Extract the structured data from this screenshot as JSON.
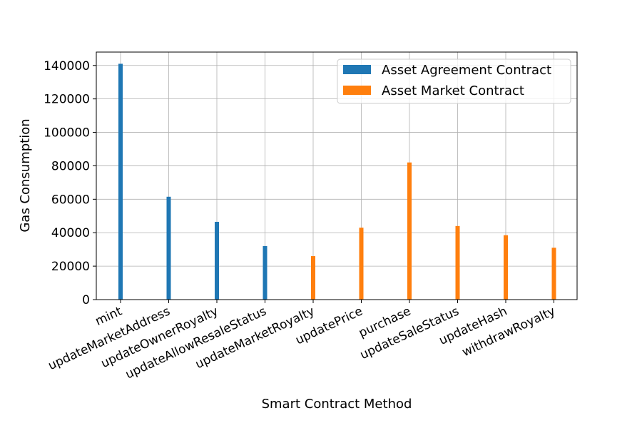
{
  "chart_data": {
    "type": "bar",
    "title": "",
    "xlabel": "Smart Contract Method",
    "ylabel": "Gas Consumption",
    "ylim": [
      0,
      148000
    ],
    "yticks": [
      0,
      20000,
      40000,
      60000,
      80000,
      100000,
      120000,
      140000
    ],
    "grid": true,
    "legend_position": "top-right",
    "categories": [
      "mint",
      "updateMarketAddress",
      "updateOwnerRoyalty",
      "updateAllowResaleStatus",
      "updateMarketRoyalty",
      "updatePrice",
      "purchase",
      "updateSaleStatus",
      "updateHash",
      "withdrawRoyalty"
    ],
    "series": [
      {
        "name": "Asset Agreement Contract",
        "color": "#1f77b4",
        "values": [
          141000,
          61500,
          46500,
          32000,
          null,
          null,
          null,
          null,
          null,
          null
        ]
      },
      {
        "name": "Asset Market Contract",
        "color": "#ff7f0e",
        "values": [
          null,
          null,
          null,
          null,
          26000,
          43000,
          82000,
          44000,
          38500,
          31000
        ]
      }
    ]
  }
}
